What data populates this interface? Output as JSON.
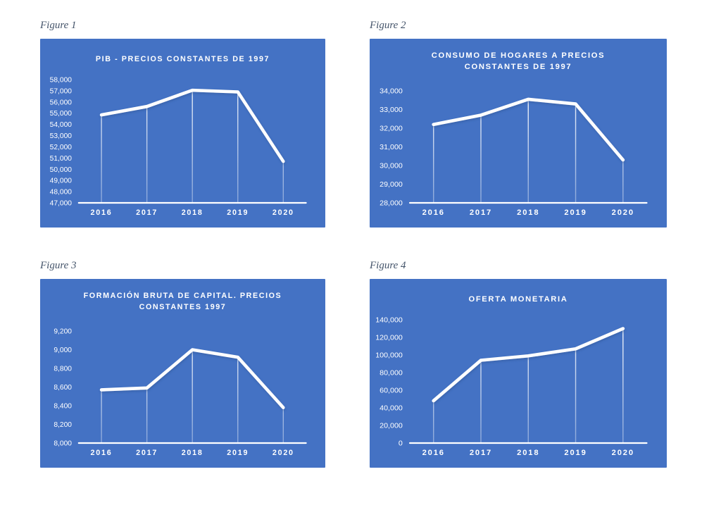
{
  "colors": {
    "chart_background": "#4472C4",
    "chart_text": "#FFFFFF",
    "series_line": "#FFFFFF",
    "line_shadow": "#2F5496",
    "caption_text": "#44546A",
    "page_background": "#FFFFFF"
  },
  "figures": [
    {
      "caption": "Figure 1"
    },
    {
      "caption": "Figure 2"
    },
    {
      "caption": "Figure 3"
    },
    {
      "caption": "Figure 4"
    }
  ],
  "chart_data": [
    {
      "type": "line",
      "title": "PIB - PRECIOS CONSTANTES DE 1997",
      "categories": [
        "2016",
        "2017",
        "2018",
        "2019",
        "2020"
      ],
      "values": [
        54850,
        55600,
        57050,
        56900,
        50700
      ],
      "ylim": [
        47000,
        58000
      ],
      "ytick_step": 1000,
      "ytick_labels": [
        "47,000",
        "48,000",
        "49,000",
        "50,000",
        "51,000",
        "52,000",
        "53,000",
        "54,000",
        "55,000",
        "56,000",
        "57,000",
        "58,000"
      ],
      "grid": false,
      "legend": false,
      "drop_lines": true
    },
    {
      "type": "line",
      "title": "CONSUMO DE HOGARES A PRECIOS CONSTANTES DE 1997",
      "categories": [
        "2016",
        "2017",
        "2018",
        "2019",
        "2020"
      ],
      "values": [
        32200,
        32700,
        33550,
        33300,
        30300
      ],
      "ylim": [
        28000,
        34000
      ],
      "ytick_step": 1000,
      "ytick_labels": [
        "28,000",
        "29,000",
        "30,000",
        "31,000",
        "32,000",
        "33,000",
        "34,000"
      ],
      "grid": false,
      "legend": false,
      "drop_lines": true
    },
    {
      "type": "line",
      "title": "FORMACIÓN BRUTA DE CAPITAL. PRECIOS CONSTANTES 1997",
      "categories": [
        "2016",
        "2017",
        "2018",
        "2019",
        "2020"
      ],
      "values": [
        8570,
        8590,
        9000,
        8920,
        8380
      ],
      "ylim": [
        8000,
        9200
      ],
      "ytick_step": 200,
      "ytick_labels": [
        "8,000",
        "8,200",
        "8,400",
        "8,600",
        "8,800",
        "9,000",
        "9,200"
      ],
      "grid": false,
      "legend": false,
      "drop_lines": true
    },
    {
      "type": "line",
      "title": "OFERTA MONETARIA",
      "categories": [
        "2016",
        "2017",
        "2018",
        "2019",
        "2020"
      ],
      "values": [
        48000,
        94000,
        99000,
        107000,
        130000
      ],
      "ylim": [
        0,
        140000
      ],
      "ytick_step": 20000,
      "ytick_labels": [
        "0",
        "20,000",
        "40,000",
        "60,000",
        "80,000",
        "100,000",
        "120,000",
        "140,000"
      ],
      "grid": false,
      "legend": false,
      "drop_lines": true
    }
  ]
}
